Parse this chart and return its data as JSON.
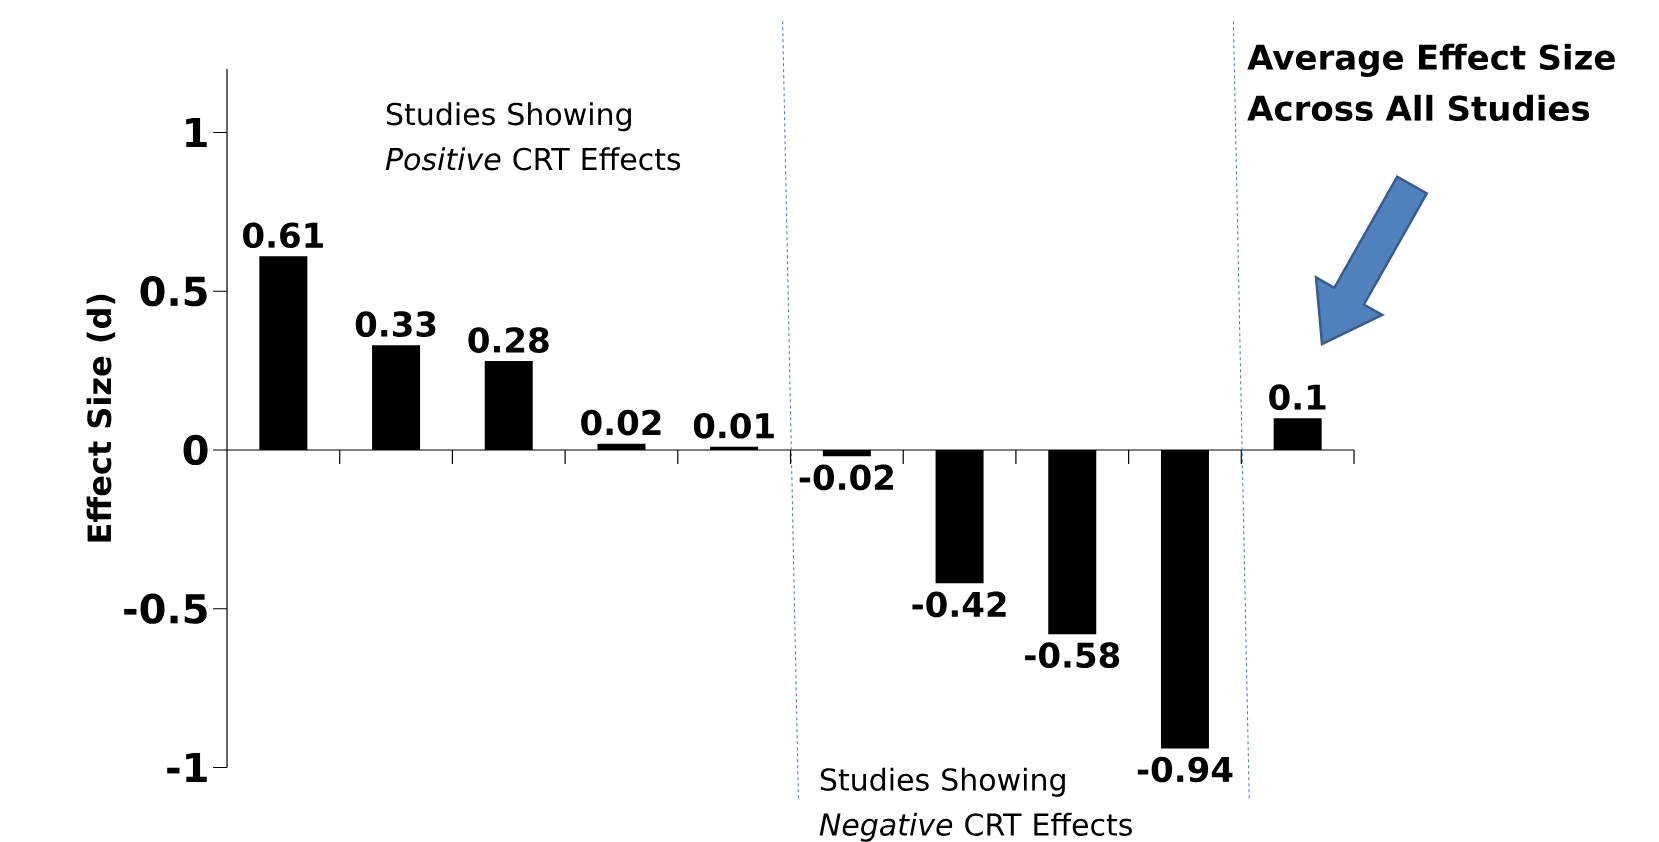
{
  "chart_data": {
    "type": "bar",
    "ylabel": "Effect Size (d)",
    "categories": [
      null,
      null,
      null,
      null,
      null,
      null,
      null,
      null,
      null,
      null
    ],
    "values": [
      0.61,
      0.33,
      0.28,
      0.02,
      0.01,
      -0.02,
      -0.42,
      -0.58,
      -0.94,
      0.1
    ],
    "color": "#000000",
    "data_labels": true,
    "ylim": [
      -1,
      1.2
    ],
    "yticks": [
      -1,
      -0.5,
      0,
      0.5,
      1
    ],
    "annotations": [
      "Studies Showing *Positive* CRT Effects",
      "Studies Showing *Negative* CRT Effects",
      "Average Effect Size Across All Studies"
    ]
  }
}
